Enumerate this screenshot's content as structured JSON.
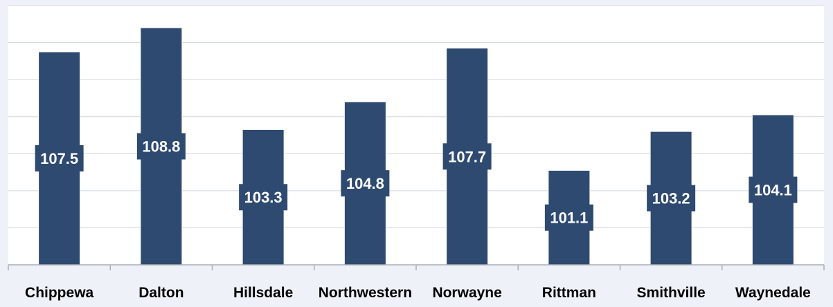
{
  "chart_data": {
    "type": "bar",
    "categories": [
      "Chippewa",
      "Dalton",
      "Hillsdale",
      "Northwestern",
      "Norwayne",
      "Rittman",
      "Smithville",
      "Waynedale"
    ],
    "values": [
      107.5,
      108.8,
      103.3,
      104.8,
      107.7,
      101.1,
      103.2,
      104.1
    ],
    "ylim": [
      96,
      110
    ],
    "grid": true,
    "data_labels": true,
    "colors": {
      "bar": "#2e4a70",
      "label_box": "#2e4a70",
      "label_text": "#ffffff",
      "grid": "#d0d6de",
      "axis": "#a8aeb6",
      "plot_bg": "#ffffff",
      "page_bg": "#eef2f8",
      "category_text": "#000000"
    }
  }
}
